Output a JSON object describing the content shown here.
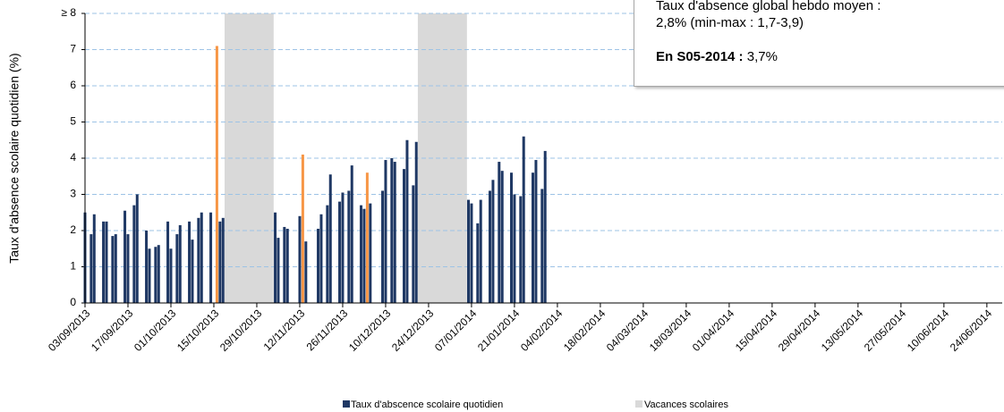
{
  "chart_data": {
    "type": "bar",
    "ylabel": "Taux d'absence scolaire quotidien (%)",
    "x": [
      "03/09/2013",
      "05/09/2013",
      "06/09/2013",
      "09/09/2013",
      "10/09/2013",
      "12/09/2013",
      "13/09/2013",
      "16/09/2013",
      "17/09/2013",
      "19/09/2013",
      "20/09/2013",
      "23/09/2013",
      "24/09/2013",
      "26/09/2013",
      "27/09/2013",
      "30/09/2013",
      "01/10/2013",
      "03/10/2013",
      "04/10/2013",
      "07/10/2013",
      "08/10/2013",
      "10/10/2013",
      "11/10/2013",
      "14/10/2013",
      "16/10/2013",
      "17/10/2013",
      "18/10/2013",
      "04/11/2013",
      "05/11/2013",
      "07/11/2013",
      "08/11/2013",
      "12/11/2013",
      "13/11/2013",
      "14/11/2013",
      "18/11/2013",
      "19/11/2013",
      "21/11/2013",
      "22/11/2013",
      "25/11/2013",
      "26/11/2013",
      "28/11/2013",
      "29/11/2013",
      "02/12/2013",
      "03/12/2013",
      "04/12/2013",
      "05/12/2013",
      "09/12/2013",
      "10/12/2013",
      "12/12/2013",
      "13/12/2013",
      "16/12/2013",
      "17/12/2013",
      "19/12/2013",
      "20/12/2013",
      "06/01/2014",
      "07/01/2014",
      "09/01/2014",
      "10/01/2014",
      "13/01/2014",
      "14/01/2014",
      "16/01/2014",
      "17/01/2014",
      "20/01/2014",
      "21/01/2014",
      "23/01/2014",
      "24/01/2014",
      "27/01/2014",
      "28/01/2014",
      "30/01/2014",
      "31/01/2014"
    ],
    "series": [
      {
        "name": "Taux d'abscence scolaire quotidien",
        "color": "#1f3864",
        "values": [
          2.5,
          1.9,
          2.45,
          2.25,
          2.25,
          1.85,
          1.9,
          2.55,
          1.9,
          2.7,
          3.0,
          2.0,
          1.5,
          1.55,
          1.6,
          2.25,
          1.5,
          1.9,
          2.15,
          2.25,
          1.75,
          2.35,
          2.5,
          2.5,
          7.1,
          2.25,
          2.35,
          2.5,
          1.8,
          2.1,
          2.05,
          2.4,
          4.1,
          1.7,
          2.05,
          2.45,
          2.7,
          3.55,
          2.8,
          3.05,
          3.1,
          3.8,
          2.7,
          2.6,
          3.6,
          2.75,
          3.1,
          3.95,
          4.0,
          3.9,
          3.7,
          4.5,
          3.25,
          4.45,
          2.85,
          2.75,
          2.2,
          2.85,
          3.1,
          3.4,
          3.9,
          3.65,
          3.6,
          3.0,
          2.95,
          4.6,
          3.6,
          3.95,
          3.15,
          4.2
        ],
        "colors": [
          "#1f3864",
          "#1f3864",
          "#1f3864",
          "#1f3864",
          "#1f3864",
          "#1f3864",
          "#1f3864",
          "#1f3864",
          "#1f3864",
          "#1f3864",
          "#1f3864",
          "#1f3864",
          "#1f3864",
          "#1f3864",
          "#1f3864",
          "#1f3864",
          "#1f3864",
          "#1f3864",
          "#1f3864",
          "#1f3864",
          "#1f3864",
          "#1f3864",
          "#1f3864",
          "#1f3864",
          "#f79646",
          "#1f3864",
          "#1f3864",
          "#1f3864",
          "#1f3864",
          "#1f3864",
          "#1f3864",
          "#1f3864",
          "#f79646",
          "#1f3864",
          "#1f3864",
          "#1f3864",
          "#1f3864",
          "#1f3864",
          "#1f3864",
          "#1f3864",
          "#1f3864",
          "#1f3864",
          "#1f3864",
          "#1f3864",
          "#f79646",
          "#1f3864",
          "#1f3864",
          "#1f3864",
          "#1f3864",
          "#1f3864",
          "#1f3864",
          "#1f3864",
          "#1f3864",
          "#1f3864",
          "#1f3864",
          "#1f3864",
          "#1f3864",
          "#1f3864",
          "#1f3864",
          "#1f3864",
          "#1f3864",
          "#1f3864",
          "#1f3864",
          "#1f3864",
          "#1f3864",
          "#1f3864",
          "#1f3864",
          "#1f3864",
          "#1f3864",
          "#1f3864"
        ]
      }
    ],
    "shaded": {
      "name": "Vacances scolaires",
      "color": "#d9d9d9",
      "ranges": [
        [
          "19/10/2013",
          "03/11/2013"
        ],
        [
          "21/12/2013",
          "05/01/2014"
        ]
      ]
    },
    "xlim": [
      "03/09/2013",
      "29/06/2014"
    ],
    "xticks": [
      "03/09/2013",
      "17/09/2013",
      "01/10/2013",
      "15/10/2013",
      "29/10/2013",
      "12/11/2013",
      "26/11/2013",
      "10/12/2013",
      "24/12/2013",
      "07/01/2014",
      "21/01/2014",
      "04/02/2014",
      "18/02/2014",
      "04/03/2014",
      "18/03/2014",
      "01/04/2014",
      "15/04/2014",
      "29/04/2014",
      "13/05/2014",
      "27/05/2014",
      "10/06/2014",
      "24/06/2014"
    ],
    "ylim": [
      0,
      8
    ],
    "yticks": [
      0,
      1,
      2,
      3,
      4,
      5,
      6,
      7,
      {
        "value": 8,
        "label": "≥ 8"
      }
    ],
    "grid": true,
    "annotation": {
      "lines": [
        "Taux d'absence global hebdo moyen :",
        "2,8% (min-max : 1,7-3,9)"
      ],
      "bold": "En S05-2014 :",
      "text": "3,7%"
    }
  }
}
